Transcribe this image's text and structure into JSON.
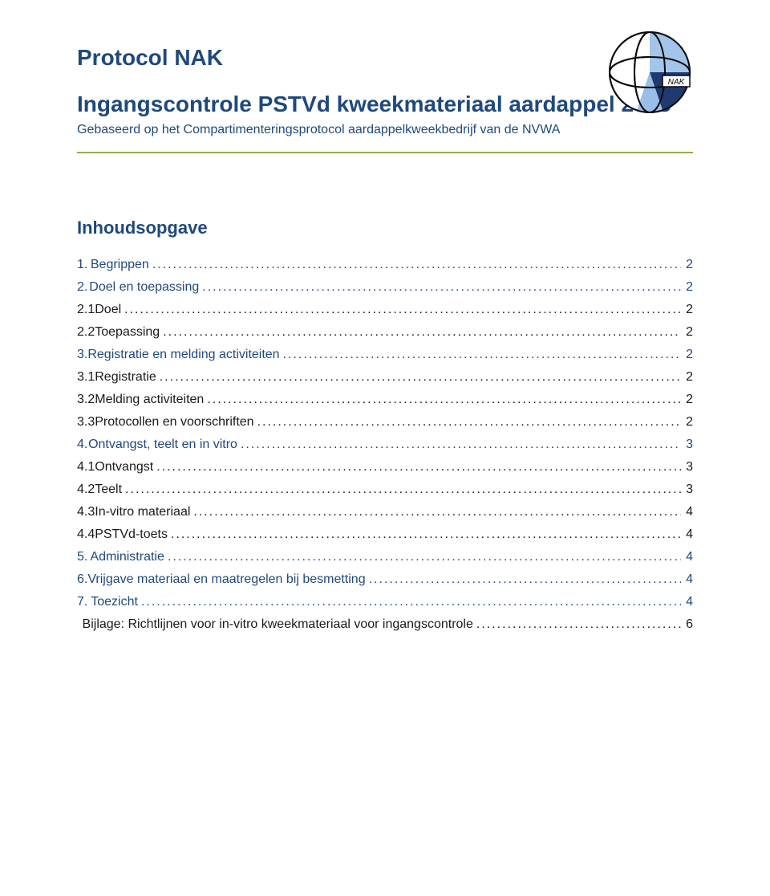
{
  "colors": {
    "heading": "#1f497d",
    "rule": "#8db04a",
    "body_text": "#1a1a1a",
    "background": "#ffffff",
    "logo_navy": "#1f3a6e",
    "logo_blue": "#99bfe8",
    "logo_outline": "#0b0b0b"
  },
  "logo": {
    "label": "NAK"
  },
  "header": {
    "product": "Protocol NAK",
    "title": "Ingangscontrole PSTVd kweekmateriaal aardappel 2015",
    "subtitle": "Gebaseerd op het Compartimenteringsprotocol aardappelkweekbedrijf van de NVWA"
  },
  "toc": {
    "heading": "Inhoudsopgave",
    "entries": [
      {
        "num": "1.",
        "label": "Begrippen",
        "page": "2",
        "link": true,
        "indent": 0
      },
      {
        "num": "2.",
        "label": "Doel en toepassing",
        "page": "2",
        "link": true,
        "indent": 0
      },
      {
        "num": "2.1",
        "label": "Doel",
        "page": "2",
        "link": false,
        "indent": 1
      },
      {
        "num": "2.2",
        "label": "Toepassing",
        "page": "2",
        "link": false,
        "indent": 1
      },
      {
        "num": "3.",
        "label": "Registratie en melding activiteiten",
        "page": "2",
        "link": true,
        "indent": 0
      },
      {
        "num": "3.1",
        "label": "Registratie",
        "page": "2",
        "link": false,
        "indent": 1
      },
      {
        "num": "3.2",
        "label": "Melding activiteiten",
        "page": "2",
        "link": false,
        "indent": 1
      },
      {
        "num": "3.3",
        "label": "Protocollen en voorschriften",
        "page": "2",
        "link": false,
        "indent": 1
      },
      {
        "num": "4.",
        "label": "Ontvangst, teelt en in vitro",
        "page": "3",
        "link": true,
        "indent": 0
      },
      {
        "num": "4.1",
        "label": "Ontvangst",
        "page": "3",
        "link": false,
        "indent": 1
      },
      {
        "num": "4.2",
        "label": "Teelt",
        "page": "3",
        "link": false,
        "indent": 1
      },
      {
        "num": "4.3",
        "label": "In-vitro materiaal",
        "page": "4",
        "link": false,
        "indent": 1
      },
      {
        "num": "4.4",
        "label": "PSTVd-toets",
        "page": "4",
        "link": false,
        "indent": 1
      },
      {
        "num": "5.",
        "label": "Administratie",
        "page": "4",
        "link": true,
        "indent": 0
      },
      {
        "num": "6.",
        "label": "Vrijgave materiaal en maatregelen bij besmetting",
        "page": "4",
        "link": true,
        "indent": 0
      },
      {
        "num": "7.",
        "label": "Toezicht",
        "page": "4",
        "link": true,
        "indent": 0
      },
      {
        "num": "",
        "label": "Bijlage: Richtlijnen voor in-vitro kweekmateriaal voor ingangscontrole",
        "page": "6",
        "link": false,
        "indent": 0
      }
    ]
  },
  "typography": {
    "heading_fontsize_pt": 21,
    "subtitle_fontsize_pt": 12,
    "toc_heading_fontsize_pt": 16,
    "toc_entry_fontsize_pt": 12,
    "font_family": "Arial"
  }
}
